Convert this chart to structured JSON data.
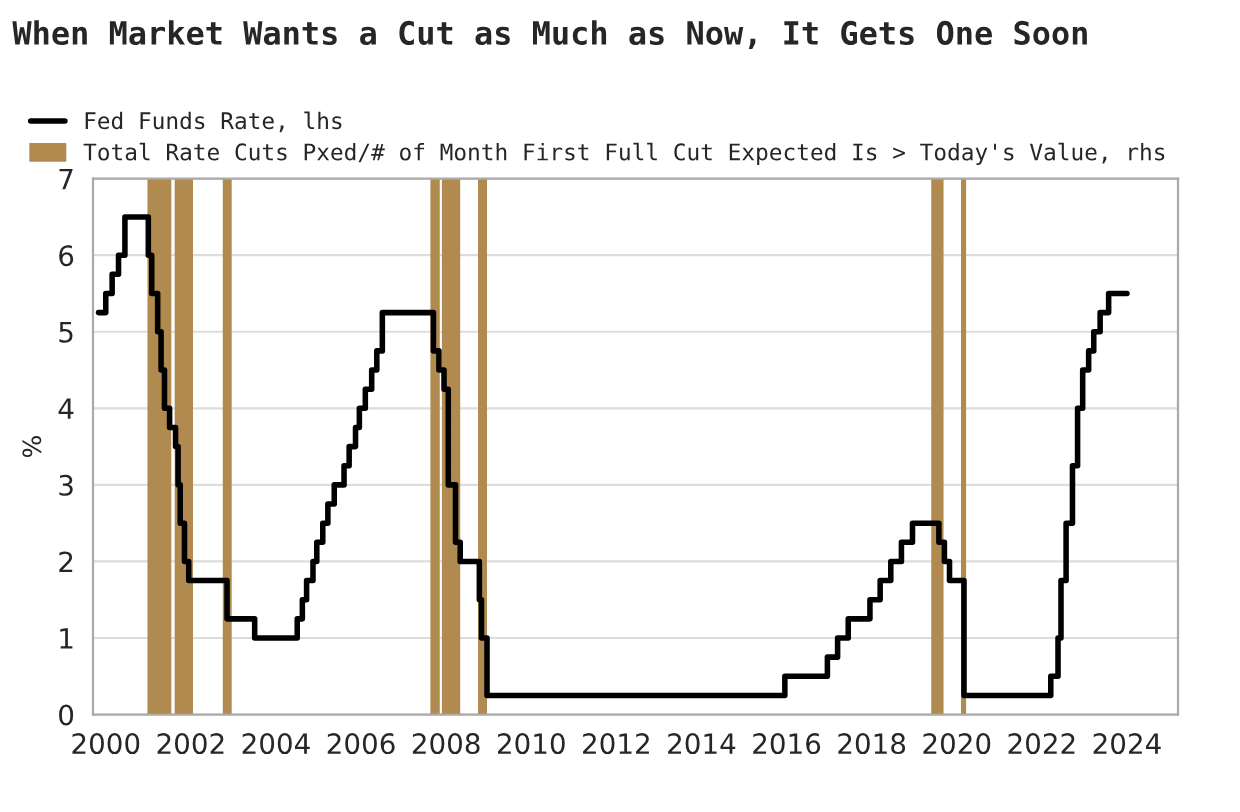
{
  "chart_data": {
    "type": "step",
    "title": "When Market Wants a Cut as Much as Now, It Gets One Soon",
    "ylabel": "%",
    "series": [
      {
        "name": "Fed Funds Rate, lhs",
        "color": "#000000",
        "x": [
          1999.83,
          2000.0,
          2000.15,
          2000.3,
          2000.45,
          2001.0,
          2001.08,
          2001.22,
          2001.3,
          2001.38,
          2001.5,
          2001.64,
          2001.7,
          2001.75,
          2001.85,
          2001.95,
          2002.85,
          2003.5,
          2004.5,
          2004.62,
          2004.72,
          2004.87,
          2004.96,
          2005.1,
          2005.22,
          2005.37,
          2005.6,
          2005.72,
          2005.87,
          2005.96,
          2006.1,
          2006.25,
          2006.37,
          2006.5,
          2007.7,
          2007.83,
          2007.95,
          2008.05,
          2008.22,
          2008.33,
          2008.78,
          2008.83,
          2008.96,
          2015.96,
          2016.96,
          2017.2,
          2017.45,
          2017.96,
          2018.2,
          2018.45,
          2018.7,
          2018.96,
          2019.58,
          2019.71,
          2019.83,
          2020.17,
          2022.21,
          2022.38,
          2022.45,
          2022.57,
          2022.72,
          2022.84,
          2022.96,
          2023.1,
          2023.22,
          2023.37,
          2023.57,
          2024.0
        ],
        "values": [
          5.25,
          5.5,
          5.75,
          6.0,
          6.5,
          6.0,
          5.5,
          5.0,
          4.5,
          4.0,
          3.75,
          3.5,
          3.0,
          2.5,
          2.0,
          1.75,
          1.25,
          1.0,
          1.25,
          1.5,
          1.75,
          2.0,
          2.25,
          2.5,
          2.75,
          3.0,
          3.25,
          3.5,
          3.75,
          4.0,
          4.25,
          4.5,
          4.75,
          5.25,
          4.75,
          4.5,
          4.25,
          3.0,
          2.25,
          2.0,
          1.5,
          1.0,
          0.25,
          0.5,
          0.75,
          1.0,
          1.25,
          1.5,
          1.75,
          2.0,
          2.25,
          2.5,
          2.25,
          2.0,
          1.75,
          0.25,
          0.5,
          1.0,
          1.75,
          2.5,
          3.25,
          4.0,
          4.5,
          4.75,
          5.0,
          5.25,
          5.5,
          5.5
        ]
      }
    ],
    "bands": [
      {
        "axis": "x",
        "from": 2000.98,
        "to": 2001.54,
        "label": "Total Rate Cuts Pxed/# of Month First Full Cut Expected Is > Today's Value, rhs",
        "color": "#b08a4e"
      },
      {
        "axis": "x",
        "from": 2001.62,
        "to": 2002.05,
        "color": "#b08a4e"
      },
      {
        "axis": "x",
        "from": 2002.75,
        "to": 2002.96,
        "color": "#b08a4e"
      },
      {
        "axis": "x",
        "from": 2007.63,
        "to": 2007.85,
        "color": "#b08a4e"
      },
      {
        "axis": "x",
        "from": 2007.9,
        "to": 2008.33,
        "color": "#b08a4e"
      },
      {
        "axis": "x",
        "from": 2008.75,
        "to": 2008.96,
        "color": "#b08a4e"
      },
      {
        "axis": "x",
        "from": 2019.4,
        "to": 2019.69,
        "color": "#b08a4e"
      },
      {
        "axis": "x",
        "from": 2020.1,
        "to": 2020.22,
        "color": "#b08a4e"
      }
    ],
    "xlim": [
      1999.7,
      2025.2
    ],
    "xticks": [
      2000,
      2002,
      2004,
      2006,
      2008,
      2010,
      2012,
      2014,
      2016,
      2018,
      2020,
      2022,
      2024
    ],
    "ylim": [
      0,
      7
    ],
    "yticks": [
      0,
      1,
      2,
      3,
      4,
      5,
      6,
      7
    ],
    "grid": "y",
    "legend": "top left"
  }
}
